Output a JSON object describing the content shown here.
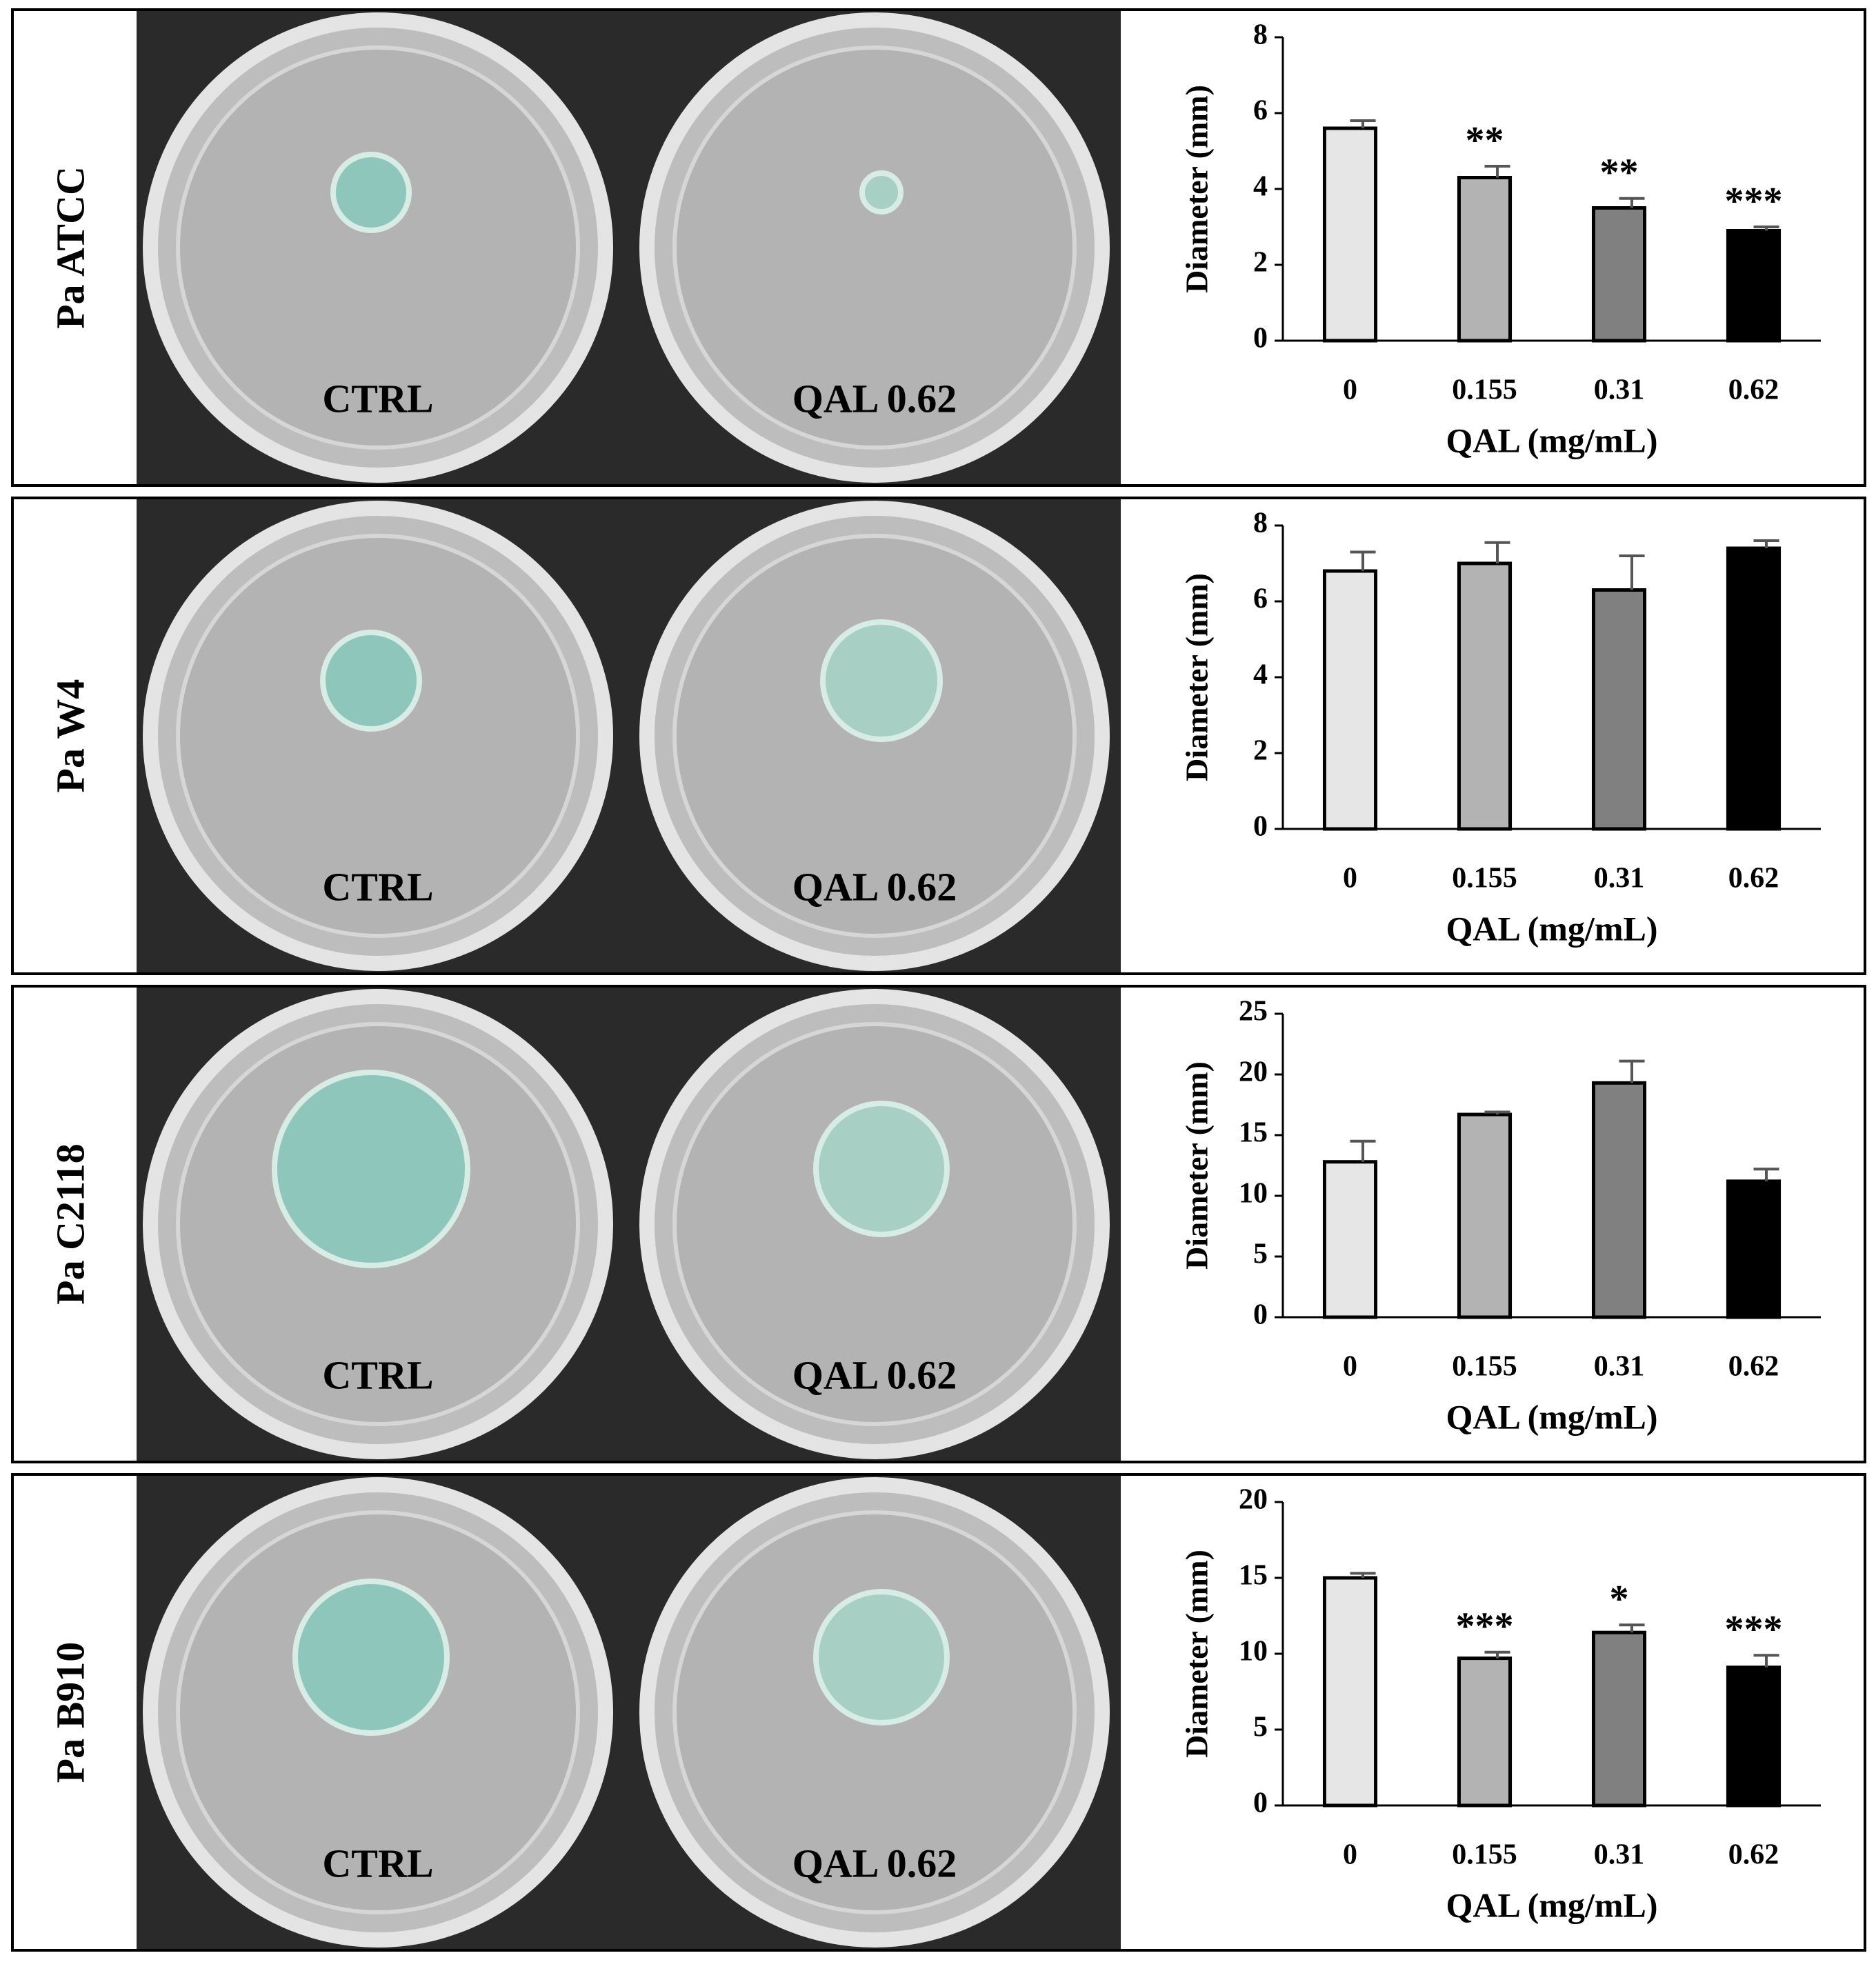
{
  "panels": [
    {
      "label": "Pa ATCC",
      "plates": [
        "CTRL",
        "QAL 0.62"
      ]
    },
    {
      "label": "Pa W4",
      "plates": [
        "CTRL",
        "QAL 0.62"
      ]
    },
    {
      "label": "Pa C2118",
      "plates": [
        "CTRL",
        "QAL 0.62"
      ]
    },
    {
      "label": "Pa B910",
      "plates": [
        "CTRL",
        "QAL 0.62"
      ]
    }
  ],
  "chart_data": [
    {
      "type": "bar",
      "xlabel": "QAL (mg/mL)",
      "ylabel": "Diameter (mm)",
      "categories": [
        "0",
        "0.155",
        "0.31",
        "0.62"
      ],
      "values": [
        5.6,
        4.3,
        3.5,
        2.9
      ],
      "errors": [
        0.2,
        0.3,
        0.25,
        0.1
      ],
      "annotations": [
        null,
        "**",
        "**",
        "***"
      ],
      "colors": [
        "#e6e6e6",
        "#b3b3b3",
        "#808080",
        "#000000"
      ],
      "ylim": [
        0,
        8
      ],
      "yticks": [
        0,
        2,
        4,
        6,
        8
      ]
    },
    {
      "type": "bar",
      "xlabel": "QAL (mg/mL)",
      "ylabel": "Diameter (mm)",
      "categories": [
        "0",
        "0.155",
        "0.31",
        "0.62"
      ],
      "values": [
        6.8,
        7.0,
        6.3,
        7.4
      ],
      "errors": [
        0.5,
        0.55,
        0.9,
        0.2
      ],
      "colors": [
        "#e6e6e6",
        "#b3b3b3",
        "#808080",
        "#000000"
      ],
      "ylim": [
        0,
        8
      ],
      "yticks": [
        0,
        2,
        4,
        6,
        8
      ]
    },
    {
      "type": "bar",
      "xlabel": "QAL (mg/mL)",
      "ylabel": "Diameter (mm)",
      "categories": [
        "0",
        "0.155",
        "0.31",
        "0.62"
      ],
      "values": [
        12.8,
        16.7,
        19.3,
        11.2
      ],
      "errors": [
        1.7,
        0.2,
        1.8,
        1.0
      ],
      "colors": [
        "#e6e6e6",
        "#b3b3b3",
        "#808080",
        "#000000"
      ],
      "ylim": [
        0,
        25
      ],
      "yticks": [
        0,
        5,
        10,
        15,
        20,
        25
      ]
    },
    {
      "type": "bar",
      "xlabel": "QAL (mg/mL)",
      "ylabel": "Diameter (mm)",
      "categories": [
        "0",
        "0.155",
        "0.31",
        "0.62"
      ],
      "values": [
        15.0,
        9.7,
        11.4,
        9.1
      ],
      "errors": [
        0.3,
        0.4,
        0.5,
        0.8
      ],
      "annotations": [
        null,
        "***",
        "*",
        "***"
      ],
      "colors": [
        "#e6e6e6",
        "#b3b3b3",
        "#808080",
        "#000000"
      ],
      "ylim": [
        0,
        20
      ],
      "yticks": [
        0,
        5,
        10,
        15,
        20
      ]
    }
  ]
}
